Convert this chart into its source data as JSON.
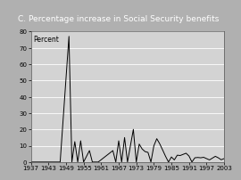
{
  "title": "C. Percentage increase in Social Security benefits",
  "ylabel": "Percent",
  "data_points": [
    [
      1937,
      0
    ],
    [
      1940,
      0
    ],
    [
      1947,
      0
    ],
    [
      1950,
      77
    ],
    [
      1951,
      0
    ],
    [
      1952,
      12.5
    ],
    [
      1953,
      0
    ],
    [
      1954,
      13
    ],
    [
      1955,
      0
    ],
    [
      1957,
      7
    ],
    [
      1958,
      0
    ],
    [
      1959,
      0
    ],
    [
      1960,
      0
    ],
    [
      1965,
      7
    ],
    [
      1966,
      0
    ],
    [
      1967,
      13
    ],
    [
      1968,
      0
    ],
    [
      1969,
      15
    ],
    [
      1970,
      0
    ],
    [
      1971,
      10
    ],
    [
      1972,
      20
    ],
    [
      1973,
      0
    ],
    [
      1974,
      11
    ],
    [
      1975,
      8
    ],
    [
      1976,
      6.4
    ],
    [
      1977,
      5.9
    ],
    [
      1978,
      0
    ],
    [
      1979,
      9.9
    ],
    [
      1980,
      14.3
    ],
    [
      1981,
      11.2
    ],
    [
      1982,
      7.4
    ],
    [
      1983,
      3.5
    ],
    [
      1984,
      0
    ],
    [
      1985,
      3.1
    ],
    [
      1986,
      1.3
    ],
    [
      1987,
      4.2
    ],
    [
      1988,
      4.0
    ],
    [
      1989,
      4.7
    ],
    [
      1990,
      5.4
    ],
    [
      1991,
      3.7
    ],
    [
      1992,
      0
    ],
    [
      1993,
      2.6
    ],
    [
      1994,
      2.8
    ],
    [
      1995,
      2.6
    ],
    [
      1996,
      2.9
    ],
    [
      1997,
      2.1
    ],
    [
      1998,
      1.3
    ],
    [
      1999,
      2.4
    ],
    [
      2000,
      3.5
    ],
    [
      2001,
      2.6
    ],
    [
      2002,
      1.4
    ],
    [
      2003,
      2.1
    ]
  ],
  "xlim": [
    1937,
    2003
  ],
  "ylim": [
    0,
    80
  ],
  "yticks": [
    0,
    10,
    20,
    30,
    40,
    50,
    60,
    70,
    80
  ],
  "xticks": [
    1937,
    1943,
    1949,
    1955,
    1961,
    1967,
    1973,
    1979,
    1985,
    1991,
    1997,
    2003
  ],
  "xtick_labels": [
    "1937",
    "1943",
    "1949",
    "1955",
    "1961",
    "1967",
    "1973",
    "1979",
    "1985",
    "1991",
    "1997",
    "2003"
  ],
  "line_color": "#000000",
  "outer_bg": "#b0b0b0",
  "title_bg": "#888888",
  "plot_bg": "#d3d3d3",
  "title_fontsize": 6.5,
  "label_fontsize": 5.5,
  "tick_fontsize": 5.0,
  "title_color": "#ffffff"
}
